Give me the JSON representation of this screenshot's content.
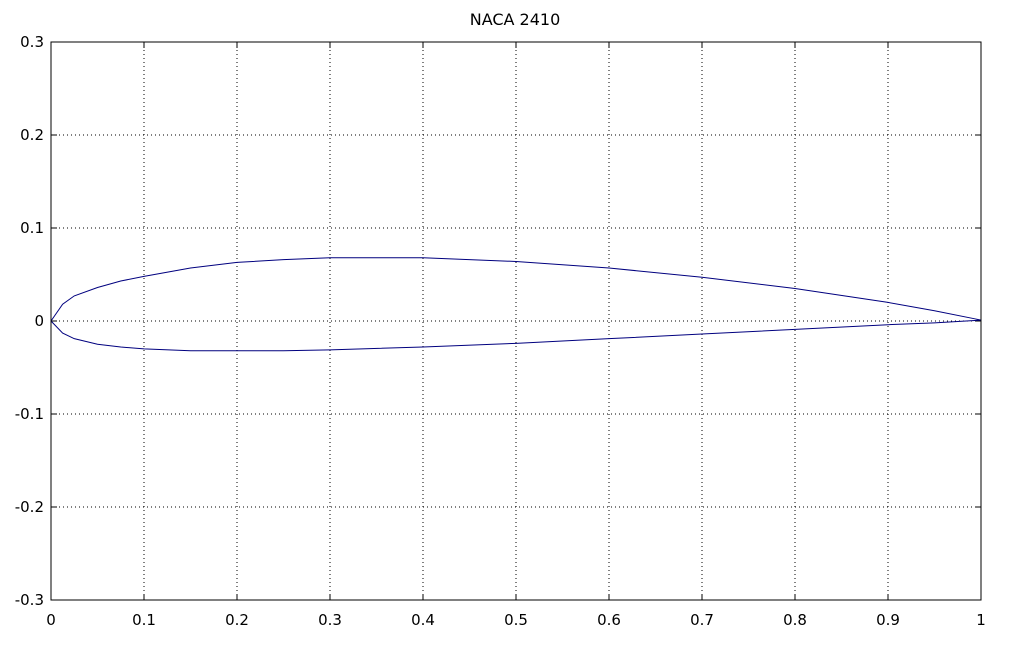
{
  "chart_data": {
    "type": "line",
    "title": "NACA 2410",
    "xlabel": "",
    "ylabel": "",
    "xlim": [
      0,
      1
    ],
    "ylim": [
      -0.3,
      0.3
    ],
    "grid": true,
    "legend": "none",
    "x_ticks": [
      "0",
      "0.1",
      "0.2",
      "0.3",
      "0.4",
      "0.5",
      "0.6",
      "0.7",
      "0.8",
      "0.9",
      "1"
    ],
    "y_ticks": [
      "-0.3",
      "-0.2",
      "-0.1",
      "0",
      "0.1",
      "0.2",
      "0.3"
    ],
    "line_color": "#00007f",
    "series": [
      {
        "x": [
          0,
          0.0125,
          0.025,
          0.05,
          0.075,
          0.1,
          0.15,
          0.2,
          0.25,
          0.3,
          0.4,
          0.5,
          0.6,
          0.7,
          0.8,
          0.9,
          0.95,
          1.0,
          0.95,
          0.9,
          0.8,
          0.7,
          0.6,
          0.5,
          0.4,
          0.3,
          0.25,
          0.2,
          0.15,
          0.1,
          0.075,
          0.05,
          0.025,
          0.0125,
          0
        ],
        "y": [
          0,
          0.018,
          0.027,
          0.036,
          0.043,
          0.048,
          0.057,
          0.063,
          0.066,
          0.068,
          0.068,
          0.064,
          0.057,
          0.047,
          0.035,
          0.02,
          0.011,
          0.001,
          -0.002,
          -0.004,
          -0.009,
          -0.014,
          -0.019,
          -0.024,
          -0.028,
          -0.031,
          -0.032,
          -0.032,
          -0.032,
          -0.03,
          -0.028,
          -0.025,
          -0.019,
          -0.013,
          0
        ]
      }
    ]
  }
}
